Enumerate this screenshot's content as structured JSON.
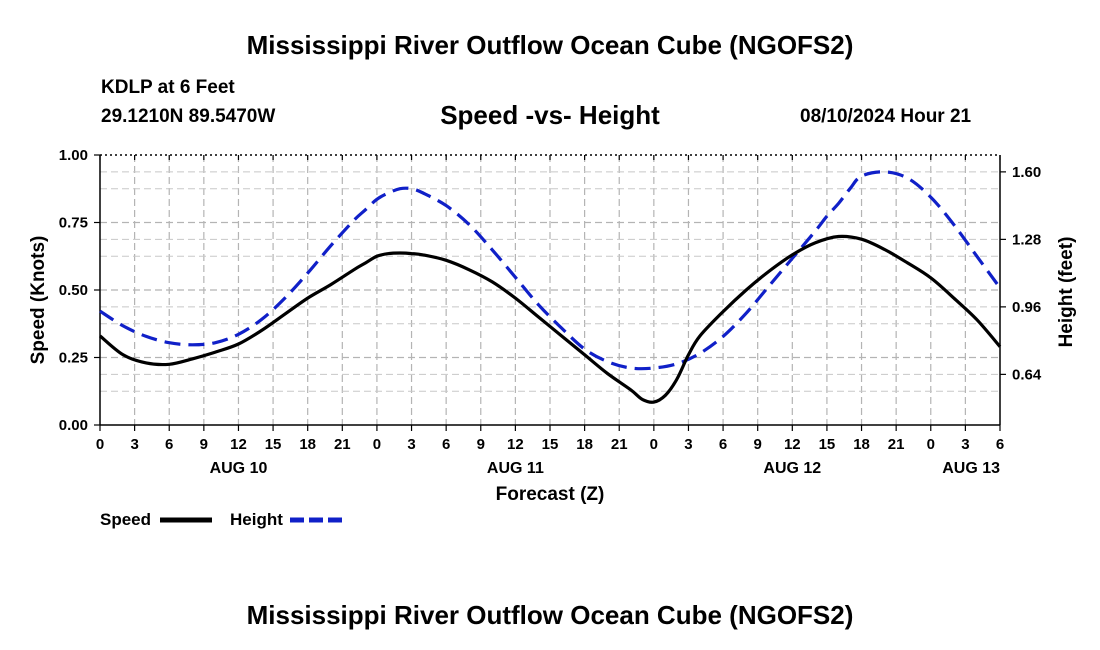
{
  "page": {
    "title": "Mississippi River Outflow Ocean Cube (NGOFS2)",
    "title_repeat": "Mississippi River Outflow Ocean Cube (NGOFS2)",
    "station": "KDLP at 6 Feet",
    "coordinates": "29.1210N  89.5470W",
    "datestamp": "08/10/2024 Hour 21"
  },
  "chart_data": {
    "type": "line",
    "title": "Speed -vs- Height",
    "xlabel": "Forecast (Z)",
    "ylabel_left": "Speed (Knots)",
    "ylabel_right": "Height (feet)",
    "x_unit": "hours from 08/10 00Z",
    "xlim": [
      0,
      78
    ],
    "ylim_left": [
      0,
      1.0
    ],
    "ylim_right": [
      0.4,
      1.68
    ],
    "x_ticks": [
      0,
      3,
      6,
      9,
      12,
      15,
      18,
      21,
      24,
      27,
      30,
      33,
      36,
      39,
      42,
      45,
      48,
      51,
      54,
      57,
      60,
      63,
      66,
      69,
      72,
      75,
      78
    ],
    "x_tick_labels": [
      "0",
      "3",
      "6",
      "9",
      "12",
      "15",
      "18",
      "21",
      "0",
      "3",
      "6",
      "9",
      "12",
      "15",
      "18",
      "21",
      "0",
      "3",
      "6",
      "9",
      "12",
      "15",
      "18",
      "21",
      "0",
      "3",
      "6"
    ],
    "y_left_ticks": [
      0,
      0.25,
      0.5,
      0.75,
      1.0
    ],
    "y_left_tick_labels": [
      "0.00",
      "0.25",
      "0.50",
      "0.75",
      "1.00"
    ],
    "y_right_ticks": [
      0.64,
      0.96,
      1.28,
      1.6
    ],
    "y_right_tick_labels": [
      "0.64",
      "0.96",
      "1.28",
      "1.60"
    ],
    "date_labels": [
      {
        "label": "AUG 10",
        "x": 12
      },
      {
        "label": "AUG 11",
        "x": 36
      },
      {
        "label": "AUG 12",
        "x": 60
      },
      {
        "label": "AUG 13",
        "x": 75.5
      }
    ],
    "grid": true,
    "legend_position": "bottom-left",
    "series": [
      {
        "name": "Speed",
        "axis": "left",
        "color": "#000000",
        "dash": "solid",
        "x": [
          0,
          2,
          4,
          6,
          8,
          10,
          12,
          14,
          16,
          18,
          20,
          22,
          23,
          24,
          25,
          26,
          27,
          28,
          30,
          32,
          34,
          36,
          38,
          40,
          42,
          44,
          46,
          47,
          48,
          49,
          50,
          51,
          52,
          54,
          56,
          58,
          60,
          62,
          64,
          66,
          68,
          70,
          72,
          74,
          76,
          78
        ],
        "y": [
          0.33,
          0.26,
          0.23,
          0.225,
          0.245,
          0.27,
          0.3,
          0.35,
          0.41,
          0.47,
          0.52,
          0.575,
          0.6,
          0.625,
          0.635,
          0.637,
          0.635,
          0.63,
          0.61,
          0.575,
          0.53,
          0.47,
          0.4,
          0.33,
          0.26,
          0.19,
          0.13,
          0.095,
          0.085,
          0.11,
          0.17,
          0.26,
          0.33,
          0.42,
          0.5,
          0.57,
          0.63,
          0.675,
          0.698,
          0.688,
          0.65,
          0.6,
          0.545,
          0.47,
          0.39,
          0.29
        ]
      },
      {
        "name": "Height",
        "axis": "right",
        "color": "#1020c8",
        "dash": "dashed",
        "x": [
          0,
          2,
          4,
          6,
          8,
          10,
          12,
          14,
          16,
          18,
          20,
          22,
          23,
          24,
          25,
          26,
          27,
          28,
          30,
          32,
          34,
          36,
          38,
          40,
          42,
          44,
          46,
          48,
          50,
          52,
          54,
          56,
          58,
          60,
          62,
          63,
          64,
          65,
          66,
          68,
          70,
          72,
          74,
          76,
          78
        ],
        "y": [
          0.94,
          0.87,
          0.82,
          0.79,
          0.78,
          0.79,
          0.83,
          0.9,
          1.0,
          1.12,
          1.25,
          1.37,
          1.42,
          1.47,
          1.5,
          1.52,
          1.52,
          1.5,
          1.44,
          1.35,
          1.23,
          1.1,
          0.97,
          0.86,
          0.76,
          0.7,
          0.67,
          0.67,
          0.69,
          0.74,
          0.82,
          0.93,
          1.06,
          1.19,
          1.32,
          1.39,
          1.45,
          1.52,
          1.58,
          1.6,
          1.57,
          1.48,
          1.35,
          1.2,
          1.05
        ]
      }
    ]
  }
}
